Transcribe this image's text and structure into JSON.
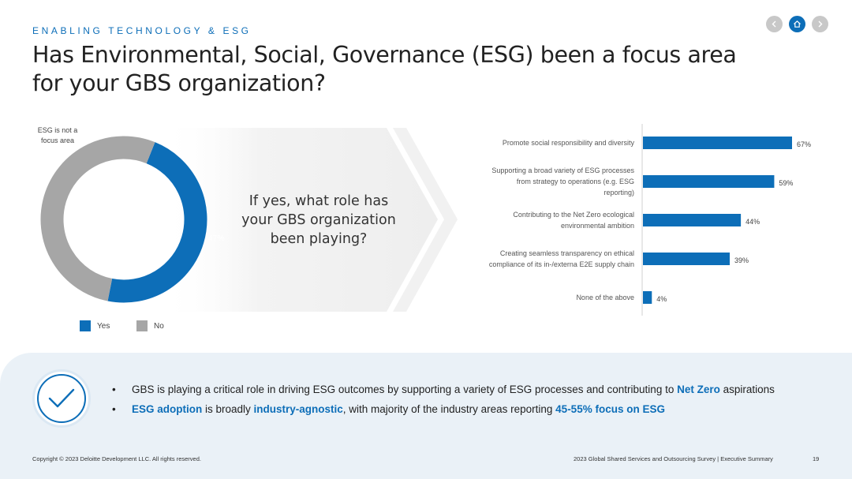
{
  "eyebrow": "ENABLING TECHNOLOGY & ESG",
  "title": "Has Environmental, Social, Governance (ESG) been a focus area for your GBS organization?",
  "nav": {
    "prev_icon": "chevron-left-icon",
    "home_icon": "home-icon",
    "next_icon": "chevron-right-icon"
  },
  "donut_note": "ESG is not a focus area",
  "legend": {
    "yes": "Yes",
    "no": "No"
  },
  "question": "If yes, what role has your GBS organization been playing?",
  "colors": {
    "blue": "#0d6eb8",
    "gray": "#a6a6a6",
    "panel": "#eaf1f7"
  },
  "chart_data": [
    {
      "type": "pie",
      "labels": [
        "Yes",
        "No"
      ],
      "values": [
        47,
        53
      ],
      "value_labels": [
        "47%",
        "53%"
      ],
      "colors": [
        "#0d6eb8",
        "#a6a6a6"
      ],
      "style": "donut",
      "legend": "bottom"
    },
    {
      "type": "bar",
      "orientation": "horizontal",
      "categories": [
        [
          "Promote social responsibility and diversity"
        ],
        [
          "Supporting a broad variety of ESG processes",
          "from strategy to operations (e.g. ESG",
          "reporting)"
        ],
        [
          "Contributing to the Net Zero ecological",
          "environmental ambition"
        ],
        [
          "Creating seamless transparency on ethical",
          "compliance of its in-/externa E2E supply chain"
        ],
        [
          "None of the above"
        ]
      ],
      "values": [
        67,
        59,
        44,
        39,
        4
      ],
      "value_labels": [
        "67%",
        "59%",
        "44%",
        "39%",
        "4%"
      ],
      "color": "#0d6eb8",
      "xlim": [
        0,
        70
      ],
      "grid": false
    }
  ],
  "bullets": [
    {
      "parts": [
        {
          "text": "GBS is playing a critical role in driving ESG outcomes by supporting a variety of ESG processes and contributing to ",
          "hl": false
        },
        {
          "text": "Net Zero",
          "hl": true
        },
        {
          "text": " aspirations",
          "hl": false
        }
      ]
    },
    {
      "parts": [
        {
          "text": "ESG adoption",
          "hl": true
        },
        {
          "text": " is broadly ",
          "hl": false
        },
        {
          "text": "industry-agnostic",
          "hl": true
        },
        {
          "text": ", with majority of the industry areas reporting ",
          "hl": false
        },
        {
          "text": "45-55% focus on ESG",
          "hl": true
        }
      ]
    }
  ],
  "check_icon": "checkmark-icon",
  "footer": {
    "copyright": "Copyright © 2023 Deloitte Development LLC. All rights reserved.",
    "survey": "2023 Global Shared Services and Outsourcing Survey | Executive Summary",
    "page": "19"
  }
}
